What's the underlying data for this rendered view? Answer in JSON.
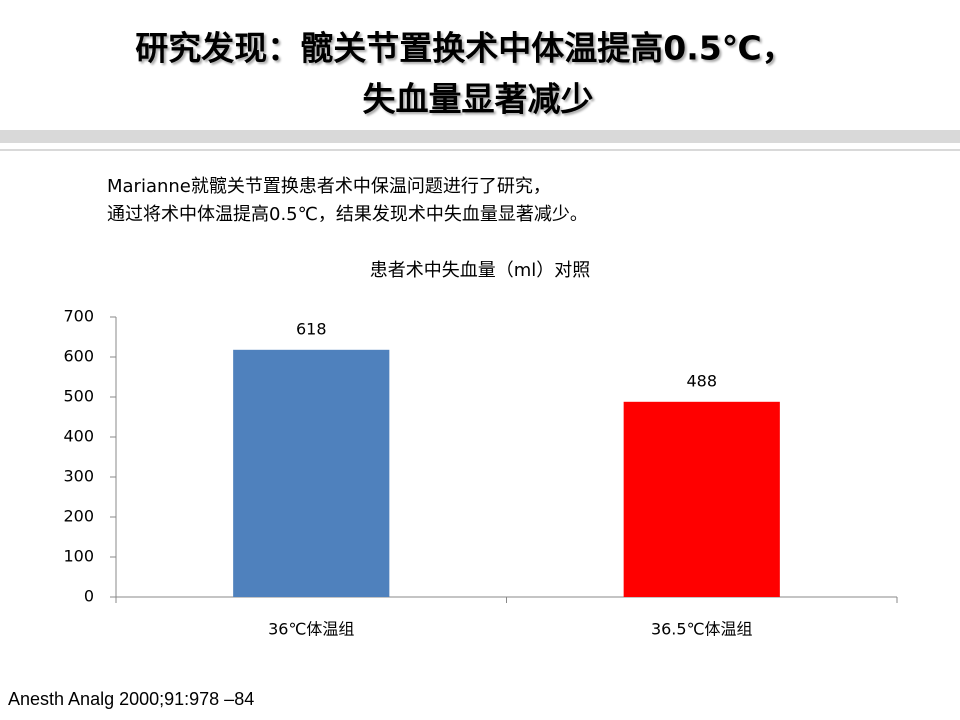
{
  "title": [
    "研究发现：髋关节置换术中体温提高0.5℃，",
    "失血量显著减少"
  ],
  "description": [
    "Marianne就髋关节置换患者术中保温问题进行了研究，",
    "通过将术中体温提高0.5℃，结果发现术中失血量显著减少。"
  ],
  "chart_data": {
    "type": "bar",
    "title": "患者术中失血量（ml）对照",
    "categories": [
      "36℃体温组",
      "36.5℃体温组"
    ],
    "values": [
      618,
      488
    ],
    "colors": [
      "#4f81bd",
      "#ff0000"
    ],
    "ylim": [
      0,
      700
    ],
    "yticks": [
      0,
      100,
      200,
      300,
      400,
      500,
      600,
      700
    ],
    "grid": false
  },
  "citation": "Anesth Analg 2000;91:978 –84"
}
